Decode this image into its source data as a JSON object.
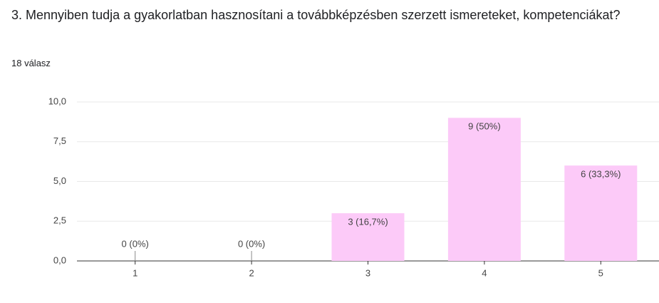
{
  "chart_data": {
    "type": "bar",
    "title": "3. Mennyiben tudja a gyakorlatban hasznosítani a továbbképzésben szerzett ismereteket, kompetenciákat?",
    "subtitle": "18 válasz",
    "categories": [
      "1",
      "2",
      "3",
      "4",
      "5"
    ],
    "values": [
      0,
      0,
      3,
      9,
      6
    ],
    "value_labels": [
      "0 (0%)",
      "0 (0%)",
      "3 (16,7%)",
      "9 (50%)",
      "6 (33,3%)"
    ],
    "color": "#fccaf8",
    "ylim": [
      0,
      10
    ],
    "yticks": [
      {
        "value": 0,
        "label": "0,0"
      },
      {
        "value": 2.5,
        "label": "2,5"
      },
      {
        "value": 5,
        "label": "5,0"
      },
      {
        "value": 7.5,
        "label": "7,5"
      },
      {
        "value": 10,
        "label": "10,0"
      }
    ],
    "grid": true
  }
}
